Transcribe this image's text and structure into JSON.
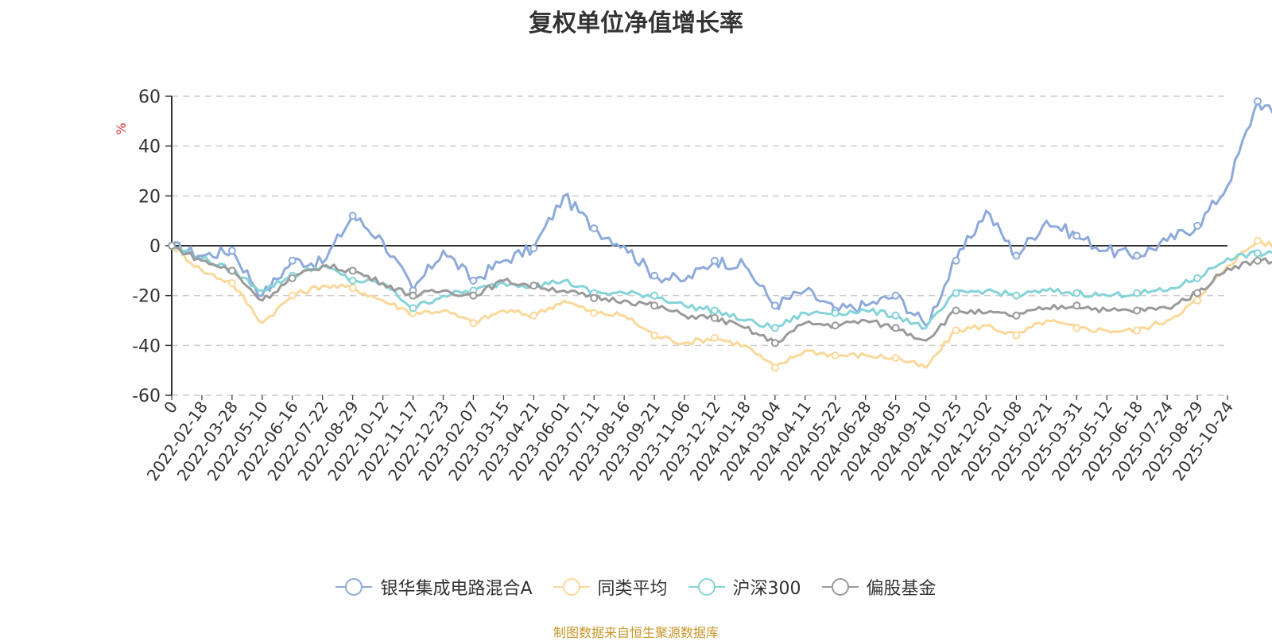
{
  "chart_data": {
    "type": "line",
    "title": "复权单位净值增长率",
    "ylabel": "%",
    "ylim": [
      -60,
      60
    ],
    "yticks": [
      60,
      40,
      20,
      0,
      -20,
      -40,
      -60
    ],
    "x_tick_labels": [
      "0",
      "2022-02-18",
      "2022-03-28",
      "2022-05-10",
      "2022-06-16",
      "2022-07-22",
      "2022-08-29",
      "2022-10-12",
      "2022-11-17",
      "2022-12-23",
      "2023-02-07",
      "2023-03-15",
      "2023-04-21",
      "2023-06-01",
      "2023-07-11",
      "2023-08-16",
      "2023-09-21",
      "2023-11-06",
      "2023-12-12",
      "2024-01-18",
      "2024-03-04",
      "2024-04-11",
      "2024-05-22",
      "2024-06-28",
      "2024-08-05",
      "2024-09-10",
      "2024-10-25",
      "2024-12-02",
      "2025-01-08",
      "2025-02-21",
      "2025-03-31",
      "2025-05-12",
      "2025-06-18",
      "2025-07-24",
      "2025-08-29",
      "2025-10-24"
    ],
    "grid": "horizontal dashed",
    "legend_position": "bottom",
    "series": [
      {
        "name": "银华集成电路混合A",
        "color": "#8eaadb",
        "values": [
          0,
          -4,
          -2,
          -20,
          -6,
          -7,
          12,
          2,
          -18,
          -2,
          -14,
          -6,
          -1,
          20,
          7,
          0,
          -12,
          -14,
          -6,
          -8,
          -24,
          -18,
          -26,
          -24,
          -20,
          -32,
          -6,
          14,
          -4,
          10,
          4,
          -2,
          -4,
          2,
          8,
          24,
          58,
          48
        ]
      },
      {
        "name": "同类平均",
        "color": "#fbd89a",
        "values": [
          0,
          -10,
          -15,
          -31,
          -20,
          -16,
          -17,
          -22,
          -27,
          -26,
          -31,
          -26,
          -28,
          -22,
          -27,
          -28,
          -36,
          -39,
          -37,
          -40,
          -49,
          -42,
          -44,
          -44,
          -45,
          -49,
          -34,
          -32,
          -36,
          -30,
          -33,
          -34,
          -34,
          -30,
          -22,
          -8,
          2,
          -2
        ]
      },
      {
        "name": "沪深300",
        "color": "#85d3d8",
        "values": [
          0,
          -5,
          -10,
          -18,
          -12,
          -8,
          -14,
          -15,
          -25,
          -20,
          -18,
          -15,
          -16,
          -14,
          -19,
          -19,
          -20,
          -24,
          -26,
          -30,
          -33,
          -27,
          -27,
          -26,
          -28,
          -33,
          -19,
          -18,
          -20,
          -18,
          -19,
          -20,
          -19,
          -18,
          -13,
          -5,
          -3,
          -4
        ]
      },
      {
        "name": "偏股基金",
        "color": "#9a9a9a",
        "values": [
          0,
          -6,
          -10,
          -22,
          -13,
          -8,
          -10,
          -15,
          -20,
          -18,
          -20,
          -14,
          -16,
          -18,
          -21,
          -22,
          -24,
          -28,
          -29,
          -33,
          -39,
          -31,
          -32,
          -30,
          -33,
          -38,
          -26,
          -27,
          -28,
          -25,
          -24,
          -26,
          -26,
          -25,
          -19,
          -9,
          -6,
          -6
        ]
      }
    ]
  },
  "source_text": "制图数据来自恒生聚源数据库"
}
